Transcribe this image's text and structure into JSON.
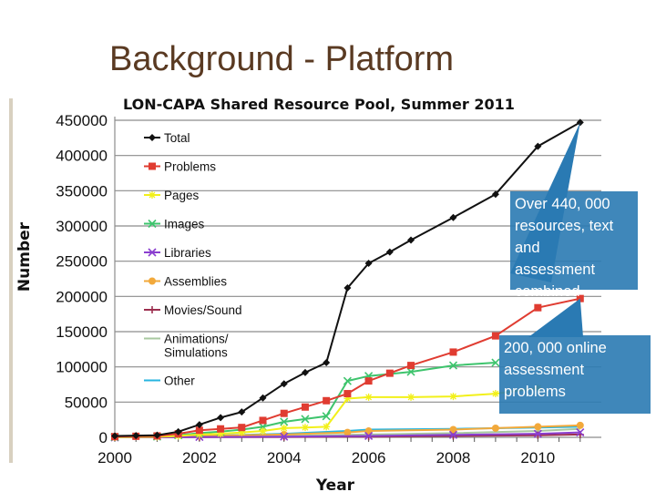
{
  "slide": {
    "title": "Background - Platform"
  },
  "chart_data": {
    "type": "line",
    "title": "LON-CAPA Shared Resource Pool, Summer 2011",
    "xlabel": "Year",
    "ylabel": "Number",
    "xlim": [
      2000,
      2011.5
    ],
    "ylim": [
      0,
      450000
    ],
    "x_ticks": [
      2000,
      2002,
      2004,
      2006,
      2008,
      2010
    ],
    "y_ticks": [
      0,
      50000,
      100000,
      150000,
      200000,
      250000,
      300000,
      350000,
      400000,
      450000
    ],
    "grid": "horizontal",
    "legend_position": "top-left",
    "series": [
      {
        "name": "Total",
        "color": "#111111",
        "marker": "diamond",
        "points": [
          [
            2000,
            2000
          ],
          [
            2000.5,
            2500
          ],
          [
            2001,
            3000
          ],
          [
            2001.5,
            8000
          ],
          [
            2002,
            18000
          ],
          [
            2002.5,
            28000
          ],
          [
            2003,
            36000
          ],
          [
            2003.5,
            56000
          ],
          [
            2004,
            76000
          ],
          [
            2004.5,
            92000
          ],
          [
            2005,
            106000
          ],
          [
            2005.5,
            212000
          ],
          [
            2006,
            247000
          ],
          [
            2006.5,
            263000
          ],
          [
            2007,
            280000
          ],
          [
            2008,
            312000
          ],
          [
            2009,
            345000
          ],
          [
            2010,
            413000
          ],
          [
            2011,
            447000
          ]
        ]
      },
      {
        "name": "Problems",
        "color": "#e03c31",
        "marker": "square",
        "points": [
          [
            2000,
            1000
          ],
          [
            2000.5,
            1500
          ],
          [
            2001,
            2000
          ],
          [
            2001.5,
            5000
          ],
          [
            2002,
            10000
          ],
          [
            2002.5,
            12000
          ],
          [
            2003,
            14000
          ],
          [
            2003.5,
            24000
          ],
          [
            2004,
            34000
          ],
          [
            2004.5,
            43000
          ],
          [
            2005,
            52000
          ],
          [
            2005.5,
            62000
          ],
          [
            2006,
            80000
          ],
          [
            2006.5,
            91000
          ],
          [
            2007,
            102000
          ],
          [
            2008,
            121000
          ],
          [
            2009,
            144000
          ],
          [
            2010,
            184000
          ],
          [
            2011,
            197000
          ]
        ]
      },
      {
        "name": "Pages",
        "color": "#f2f01a",
        "marker": "star",
        "points": [
          [
            2000,
            300
          ],
          [
            2001,
            800
          ],
          [
            2001.5,
            2000
          ],
          [
            2002,
            4000
          ],
          [
            2002.5,
            5000
          ],
          [
            2003,
            7000
          ],
          [
            2003.5,
            9000
          ],
          [
            2004,
            13000
          ],
          [
            2004.5,
            14000
          ],
          [
            2005,
            15000
          ],
          [
            2005.5,
            55000
          ],
          [
            2006,
            57000
          ],
          [
            2007,
            57000
          ],
          [
            2008,
            58000
          ],
          [
            2009,
            62000
          ],
          [
            2010,
            70000
          ]
        ]
      },
      {
        "name": "Images",
        "color": "#3ec46d",
        "marker": "x",
        "points": [
          [
            2000,
            500
          ],
          [
            2001,
            1000
          ],
          [
            2001.5,
            3000
          ],
          [
            2002,
            6000
          ],
          [
            2002.5,
            8000
          ],
          [
            2003,
            11000
          ],
          [
            2003.5,
            15000
          ],
          [
            2004,
            22000
          ],
          [
            2004.5,
            26000
          ],
          [
            2005,
            30000
          ],
          [
            2005.5,
            80000
          ],
          [
            2006,
            87000
          ],
          [
            2007,
            93000
          ],
          [
            2008,
            102000
          ],
          [
            2009,
            106000
          ]
        ]
      },
      {
        "name": "Libraries",
        "color": "#8a3ecf",
        "marker": "x",
        "points": [
          [
            2000,
            0
          ],
          [
            2002,
            500
          ],
          [
            2004,
            1000
          ],
          [
            2006,
            2000
          ],
          [
            2008,
            3500
          ],
          [
            2010,
            5000
          ],
          [
            2011,
            7000
          ]
        ]
      },
      {
        "name": "Assemblies",
        "color": "#f2a93b",
        "marker": "circle",
        "points": [
          [
            2000,
            1000
          ],
          [
            2002,
            2000
          ],
          [
            2004,
            4000
          ],
          [
            2005.5,
            7000
          ],
          [
            2006,
            9000
          ],
          [
            2008,
            11000
          ],
          [
            2009,
            13000
          ],
          [
            2010,
            15000
          ],
          [
            2011,
            17000
          ]
        ]
      },
      {
        "name": "Movies/Sound",
        "color": "#9c2f4f",
        "marker": "plus",
        "points": [
          [
            2000,
            0
          ],
          [
            2002,
            200
          ],
          [
            2004,
            500
          ],
          [
            2006,
            1000
          ],
          [
            2008,
            2000
          ],
          [
            2010,
            3000
          ],
          [
            2011,
            4000
          ]
        ]
      },
      {
        "name": "Animations/ Simulations",
        "color": "#a8c8a0",
        "marker": "none",
        "points": [
          [
            2000,
            0
          ],
          [
            2002,
            1000
          ],
          [
            2004,
            2000
          ],
          [
            2006,
            4000
          ],
          [
            2008,
            6000
          ],
          [
            2010,
            9000
          ],
          [
            2011,
            12000
          ]
        ]
      },
      {
        "name": "Other",
        "color": "#27b5e0",
        "marker": "none",
        "points": [
          [
            2000,
            500
          ],
          [
            2002,
            2000
          ],
          [
            2004,
            5000
          ],
          [
            2005.5,
            9000
          ],
          [
            2006,
            11000
          ],
          [
            2008,
            12000
          ],
          [
            2010,
            14000
          ],
          [
            2011,
            15000
          ]
        ]
      }
    ],
    "annotations": [
      {
        "text_lines": [
          "Over 440, 000",
          "resources, text",
          "and",
          "assessment",
          "combined"
        ],
        "target": [
          2011,
          447000
        ],
        "color": "#2a7ab3"
      },
      {
        "text_lines": [
          "200, 000 online",
          "assessment",
          "problems"
        ],
        "target": [
          2011,
          197000
        ],
        "color": "#2a7ab3"
      }
    ]
  }
}
